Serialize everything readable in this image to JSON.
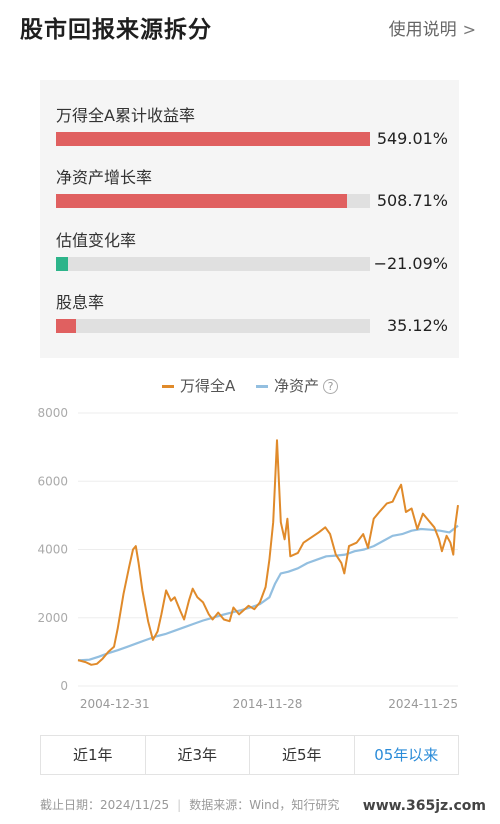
{
  "header": {
    "title": "股市回报来源拆分",
    "help_label": "使用说明",
    "help_chevron": ">"
  },
  "metrics": [
    {
      "label": "万得全A累计收益率",
      "value": "549.01%",
      "fraction": 1.0,
      "color": "#e06060"
    },
    {
      "label": "净资产增长率",
      "value": "508.71%",
      "fraction": 0.927,
      "color": "#e06060"
    },
    {
      "label": "估值变化率",
      "value": "−21.09%",
      "fraction": 0.038,
      "color": "#2db48a"
    },
    {
      "label": "股息率",
      "value": "35.12%",
      "fraction": 0.064,
      "color": "#e06060"
    }
  ],
  "legend": {
    "series1": "万得全A",
    "series2": "净资产",
    "help_mark": "?"
  },
  "chart_data": {
    "type": "line",
    "ylim": [
      0,
      8000
    ],
    "yticks": [
      "0",
      "2000",
      "4000",
      "6000",
      "8000"
    ],
    "xticks": [
      "2004-12-31",
      "2014-11-28",
      "2024-11-25"
    ],
    "x_range": [
      2004.9,
      2024.95
    ],
    "grid": true,
    "legend": "top-center",
    "series": [
      {
        "name": "万得全A",
        "color": "#e08a2a",
        "points": [
          [
            2004.9,
            760
          ],
          [
            2005.3,
            700
          ],
          [
            2005.6,
            620
          ],
          [
            2005.9,
            650
          ],
          [
            2006.2,
            800
          ],
          [
            2006.5,
            1000
          ],
          [
            2006.8,
            1150
          ],
          [
            2007.0,
            1700
          ],
          [
            2007.3,
            2700
          ],
          [
            2007.6,
            3500
          ],
          [
            2007.8,
            4000
          ],
          [
            2007.95,
            4100
          ],
          [
            2008.1,
            3600
          ],
          [
            2008.3,
            2800
          ],
          [
            2008.6,
            1900
          ],
          [
            2008.85,
            1350
          ],
          [
            2009.1,
            1600
          ],
          [
            2009.3,
            2100
          ],
          [
            2009.55,
            2800
          ],
          [
            2009.8,
            2500
          ],
          [
            2010.0,
            2600
          ],
          [
            2010.3,
            2200
          ],
          [
            2010.5,
            1950
          ],
          [
            2010.75,
            2500
          ],
          [
            2010.95,
            2850
          ],
          [
            2011.2,
            2600
          ],
          [
            2011.5,
            2450
          ],
          [
            2011.8,
            2100
          ],
          [
            2012.0,
            1950
          ],
          [
            2012.3,
            2150
          ],
          [
            2012.6,
            1950
          ],
          [
            2012.9,
            1900
          ],
          [
            2013.1,
            2300
          ],
          [
            2013.4,
            2100
          ],
          [
            2013.6,
            2200
          ],
          [
            2013.9,
            2350
          ],
          [
            2014.2,
            2250
          ],
          [
            2014.5,
            2450
          ],
          [
            2014.8,
            2900
          ],
          [
            2015.0,
            3700
          ],
          [
            2015.2,
            4800
          ],
          [
            2015.4,
            7200
          ],
          [
            2015.5,
            6000
          ],
          [
            2015.6,
            4800
          ],
          [
            2015.8,
            4300
          ],
          [
            2015.95,
            4900
          ],
          [
            2016.1,
            3800
          ],
          [
            2016.5,
            3900
          ],
          [
            2016.8,
            4200
          ],
          [
            2017.2,
            4350
          ],
          [
            2017.6,
            4500
          ],
          [
            2017.95,
            4650
          ],
          [
            2018.2,
            4450
          ],
          [
            2018.5,
            3850
          ],
          [
            2018.8,
            3600
          ],
          [
            2018.95,
            3300
          ],
          [
            2019.2,
            4100
          ],
          [
            2019.6,
            4200
          ],
          [
            2019.95,
            4450
          ],
          [
            2020.2,
            4050
          ],
          [
            2020.5,
            4900
          ],
          [
            2020.8,
            5100
          ],
          [
            2021.2,
            5350
          ],
          [
            2021.5,
            5400
          ],
          [
            2021.75,
            5700
          ],
          [
            2021.95,
            5900
          ],
          [
            2022.2,
            5100
          ],
          [
            2022.5,
            5200
          ],
          [
            2022.8,
            4600
          ],
          [
            2023.1,
            5050
          ],
          [
            2023.4,
            4850
          ],
          [
            2023.7,
            4650
          ],
          [
            2023.95,
            4300
          ],
          [
            2024.1,
            3950
          ],
          [
            2024.35,
            4400
          ],
          [
            2024.55,
            4200
          ],
          [
            2024.7,
            3850
          ],
          [
            2024.8,
            4700
          ],
          [
            2024.95,
            5300
          ]
        ]
      },
      {
        "name": "净资产",
        "color": "#93bfe0",
        "points": [
          [
            2004.9,
            750
          ],
          [
            2005.5,
            770
          ],
          [
            2006.0,
            860
          ],
          [
            2006.5,
            960
          ],
          [
            2007.0,
            1050
          ],
          [
            2007.5,
            1150
          ],
          [
            2008.0,
            1250
          ],
          [
            2008.5,
            1350
          ],
          [
            2009.0,
            1450
          ],
          [
            2009.5,
            1520
          ],
          [
            2010.0,
            1620
          ],
          [
            2010.5,
            1720
          ],
          [
            2011.0,
            1820
          ],
          [
            2011.5,
            1920
          ],
          [
            2012.0,
            2000
          ],
          [
            2012.5,
            2080
          ],
          [
            2013.0,
            2150
          ],
          [
            2013.5,
            2220
          ],
          [
            2014.0,
            2300
          ],
          [
            2014.5,
            2400
          ],
          [
            2015.0,
            2600
          ],
          [
            2015.3,
            3000
          ],
          [
            2015.6,
            3300
          ],
          [
            2016.0,
            3350
          ],
          [
            2016.5,
            3450
          ],
          [
            2017.0,
            3600
          ],
          [
            2017.5,
            3700
          ],
          [
            2018.0,
            3800
          ],
          [
            2018.5,
            3820
          ],
          [
            2019.0,
            3850
          ],
          [
            2019.5,
            3950
          ],
          [
            2020.0,
            4000
          ],
          [
            2020.5,
            4100
          ],
          [
            2021.0,
            4250
          ],
          [
            2021.5,
            4400
          ],
          [
            2022.0,
            4450
          ],
          [
            2022.5,
            4550
          ],
          [
            2023.0,
            4600
          ],
          [
            2023.5,
            4580
          ],
          [
            2024.0,
            4550
          ],
          [
            2024.5,
            4500
          ],
          [
            2024.95,
            4700
          ]
        ]
      }
    ]
  },
  "periods": [
    {
      "label": "近1年",
      "active": false
    },
    {
      "label": "近3年",
      "active": false
    },
    {
      "label": "近5年",
      "active": false
    },
    {
      "label": "05年以来",
      "active": true
    }
  ],
  "footer": {
    "cutoff": "截止日期：2024/11/25",
    "source": "数据来源：Wind，知行研究",
    "watermark": "www.365jz.com"
  }
}
